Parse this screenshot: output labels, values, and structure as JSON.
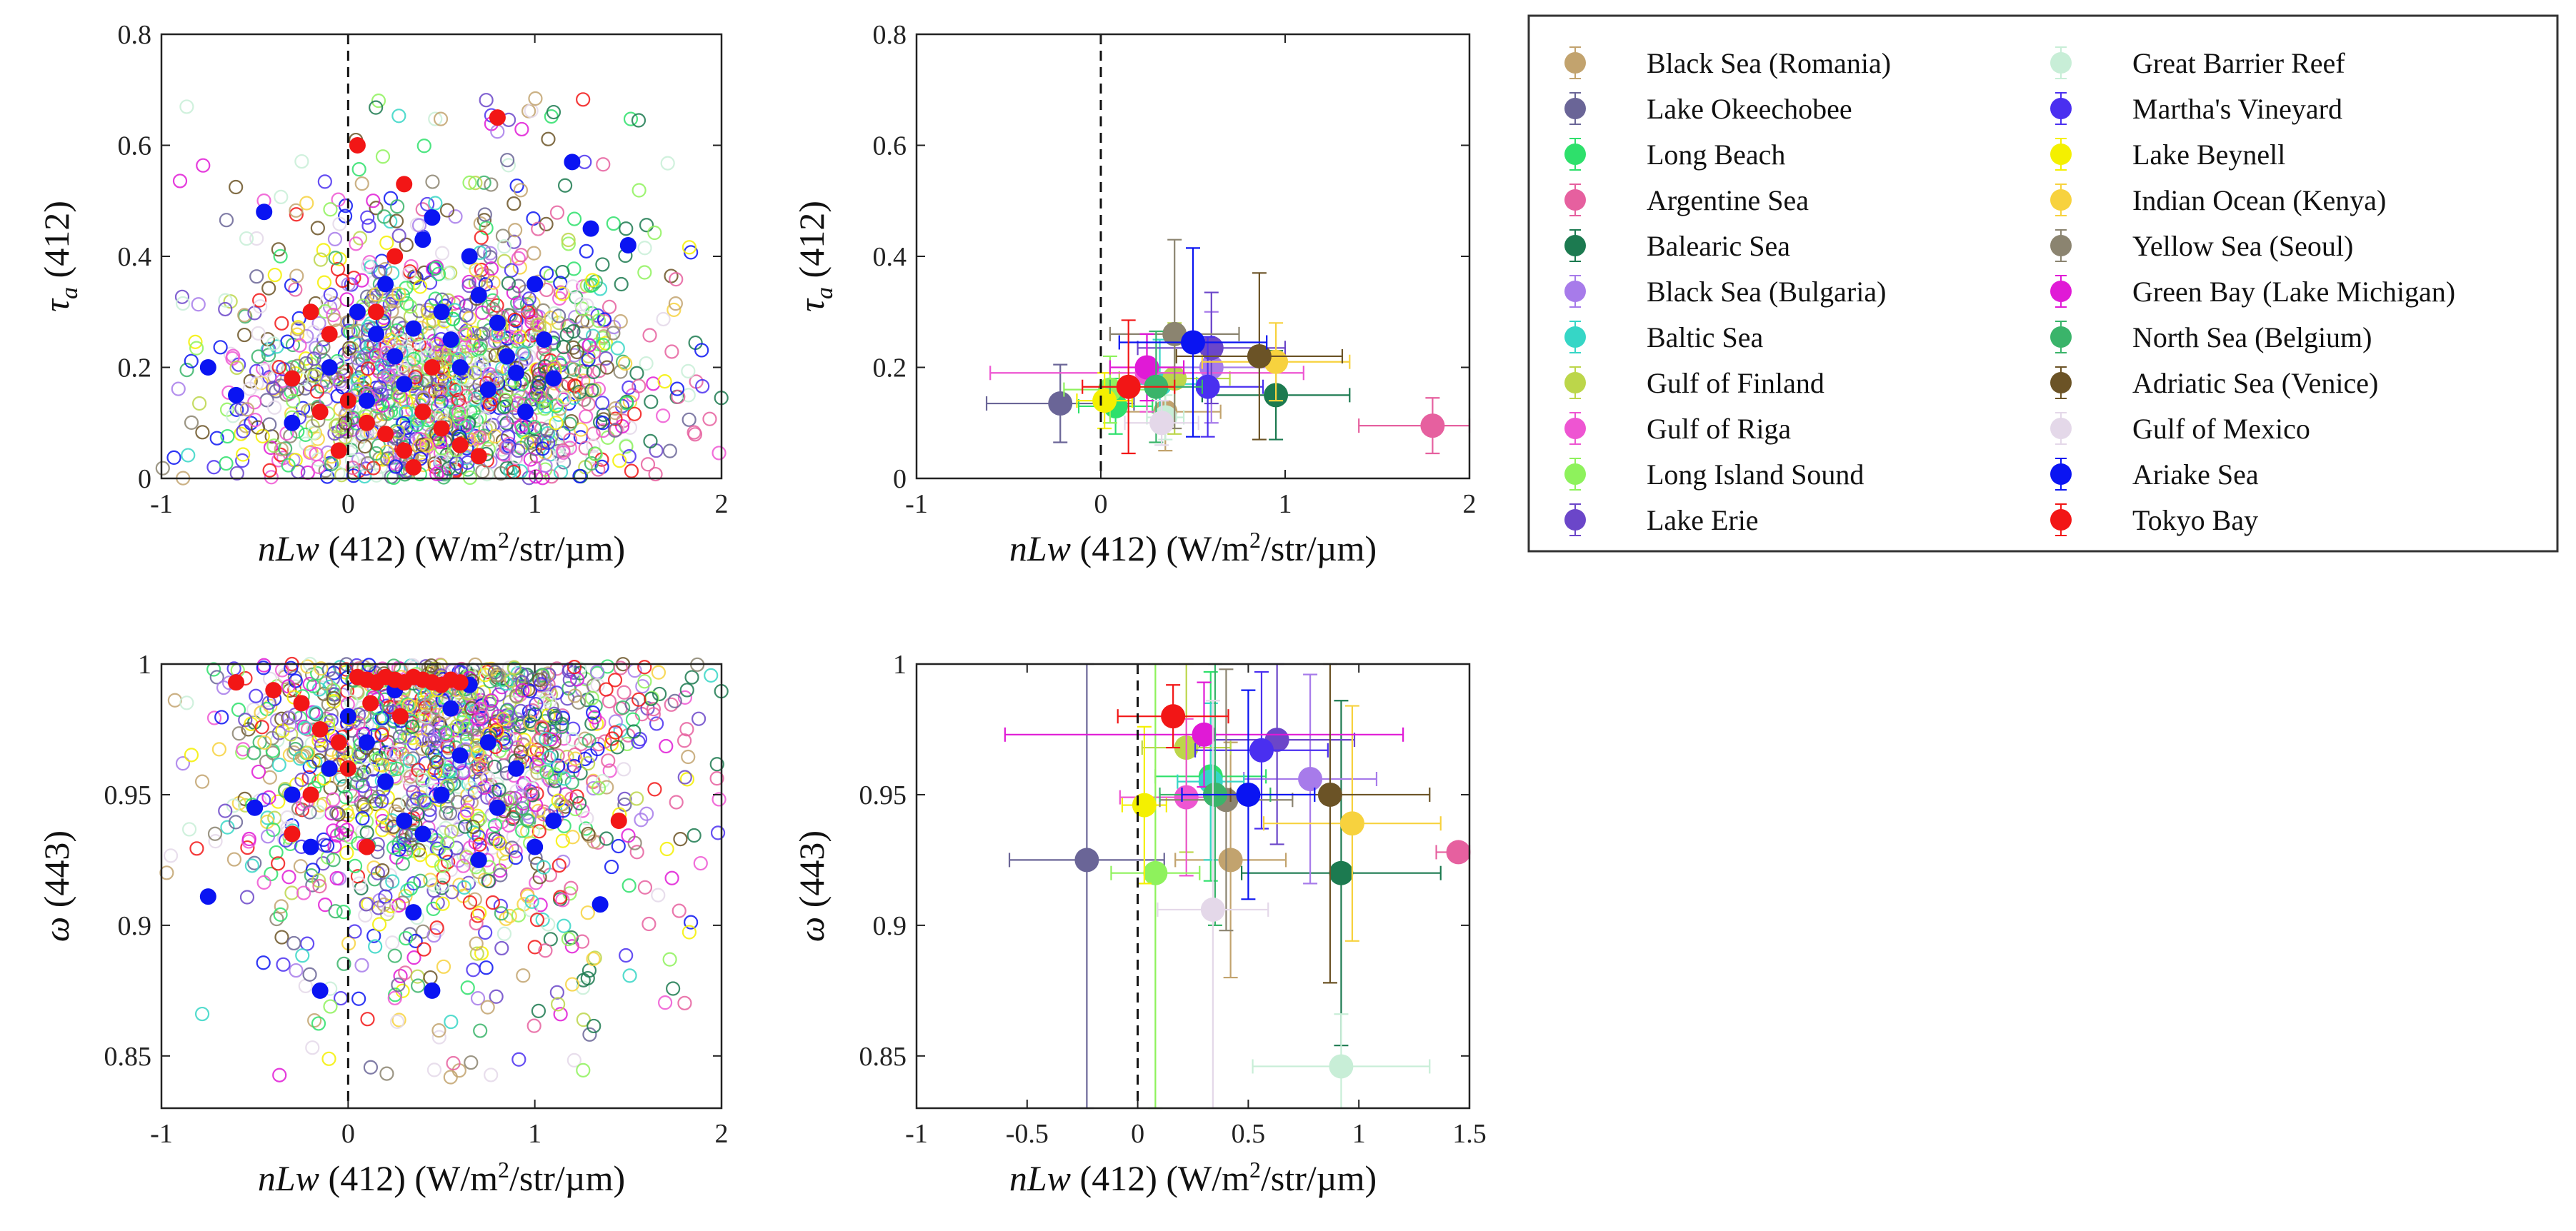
{
  "sites": [
    {
      "name": "Black Sea (Romania)",
      "color": "#c2a36e"
    },
    {
      "name": "Lake Okeechobee",
      "color": "#6a6597"
    },
    {
      "name": "Long Beach",
      "color": "#2ee06b"
    },
    {
      "name": "Argentine Sea",
      "color": "#e6609f"
    },
    {
      "name": "Balearic Sea",
      "color": "#1c7a50"
    },
    {
      "name": "Black Sea (Bulgaria)",
      "color": "#a77bea"
    },
    {
      "name": "Baltic Sea",
      "color": "#36d6c6"
    },
    {
      "name": "Gulf of Finland",
      "color": "#bcd64a"
    },
    {
      "name": "Gulf of Riga",
      "color": "#ee55d2"
    },
    {
      "name": "Long Island Sound",
      "color": "#8ef25c"
    },
    {
      "name": "Lake Erie",
      "color": "#6b46c9"
    },
    {
      "name": "Great Barrier Reef",
      "color": "#c8eed7"
    },
    {
      "name": "Martha's Vineyard",
      "color": "#4a2ff0"
    },
    {
      "name": "Lake Beynell",
      "color": "#f4f000"
    },
    {
      "name": "Indian Ocean (Kenya)",
      "color": "#f7d23e"
    },
    {
      "name": "Yellow Sea (Seoul)",
      "color": "#8b8470"
    },
    {
      "name": "Green Bay (Lake Michigan)",
      "color": "#e01ad6"
    },
    {
      "name": "North Sea (Belgium)",
      "color": "#3ab46a"
    },
    {
      "name": "Adriatic Sea (Venice)",
      "color": "#6b5326"
    },
    {
      "name": "Gulf of Mexico",
      "color": "#e4d8e9"
    },
    {
      "name": "Ariake Sea",
      "color": "#0a14f2"
    },
    {
      "name": "Tokyo Bay",
      "color": "#f21616"
    }
  ],
  "chart_data": [
    {
      "id": "p1",
      "type": "scatter",
      "title": "",
      "xlabel_italic": "nLw",
      "xlabel_rest": " (412) (W/m",
      "xlabel_sup": "2",
      "xlabel_tail": "/str/µm)",
      "ylabel_main": "τ",
      "ylabel_sub": "a",
      "ylabel_rest": " (412)",
      "xlim": [
        -1,
        2
      ],
      "ylim": [
        0,
        0.8
      ],
      "xticks": [
        -1,
        0,
        1,
        2
      ],
      "yticks": [
        0,
        0.2,
        0.4,
        0.6,
        0.8
      ],
      "xtick_labels": [
        "-1",
        "0",
        "1",
        "2"
      ],
      "ytick_labels": [
        "0",
        "0.2",
        "0.4",
        "0.6",
        "0.8"
      ],
      "vline": 0,
      "background_points": "dense open circles from all sites",
      "highlighted_series": [
        {
          "name": "Ariake Sea",
          "points": [
            [
              -0.45,
              0.48
            ],
            [
              -0.75,
              0.2
            ],
            [
              -0.6,
              0.15
            ],
            [
              -0.3,
              0.1
            ],
            [
              -0.1,
              0.2
            ],
            [
              0.1,
              0.14
            ],
            [
              0.2,
              0.35
            ],
            [
              0.3,
              0.17
            ],
            [
              0.35,
              0.27
            ],
            [
              0.4,
              0.43
            ],
            [
              0.45,
              0.47
            ],
            [
              0.5,
              0.3
            ],
            [
              0.55,
              0.25
            ],
            [
              0.6,
              0.2
            ],
            [
              0.65,
              0.4
            ],
            [
              0.7,
              0.33
            ],
            [
              0.75,
              0.16
            ],
            [
              0.8,
              0.28
            ],
            [
              0.85,
              0.22
            ],
            [
              0.9,
              0.19
            ],
            [
              0.95,
              0.12
            ],
            [
              1.0,
              0.35
            ],
            [
              1.05,
              0.25
            ],
            [
              1.1,
              0.18
            ],
            [
              1.2,
              0.57
            ],
            [
              1.3,
              0.45
            ],
            [
              1.5,
              0.42
            ],
            [
              0.15,
              0.26
            ],
            [
              0.25,
              0.22
            ],
            [
              0.05,
              0.3
            ]
          ]
        },
        {
          "name": "Tokyo Bay",
          "points": [
            [
              -0.2,
              0.3
            ],
            [
              -0.1,
              0.26
            ],
            [
              0.0,
              0.14
            ],
            [
              0.1,
              0.1
            ],
            [
              0.2,
              0.08
            ],
            [
              0.3,
              0.05
            ],
            [
              0.4,
              0.12
            ],
            [
              0.5,
              0.09
            ],
            [
              0.6,
              0.06
            ],
            [
              0.7,
              0.04
            ],
            [
              0.15,
              0.3
            ],
            [
              0.25,
              0.4
            ],
            [
              -0.05,
              0.05
            ],
            [
              0.8,
              0.65
            ],
            [
              0.05,
              0.6
            ],
            [
              0.3,
              0.53
            ],
            [
              0.45,
              0.2
            ],
            [
              -0.3,
              0.18
            ],
            [
              -0.15,
              0.12
            ],
            [
              0.35,
              0.02
            ]
          ]
        }
      ]
    },
    {
      "id": "p2",
      "type": "scatter",
      "title": "",
      "xlabel_italic": "nLw",
      "xlabel_rest": " (412) (W/m",
      "xlabel_sup": "2",
      "xlabel_tail": "/str/µm)",
      "ylabel_main": "τ",
      "ylabel_sub": "a",
      "ylabel_rest": " (412)",
      "xlim": [
        -1,
        2
      ],
      "ylim": [
        0,
        0.8
      ],
      "xticks": [
        -1,
        0,
        1,
        2
      ],
      "yticks": [
        0,
        0.2,
        0.4,
        0.6,
        0.8
      ],
      "xtick_labels": [
        "-1",
        "0",
        "1",
        "2"
      ],
      "ytick_labels": [
        "0",
        "0.2",
        "0.4",
        "0.6",
        "0.8"
      ],
      "vline": 0,
      "means": [
        {
          "site": "Black Sea (Romania)",
          "x": 0.35,
          "y": 0.12,
          "xerr": 0.3,
          "yerr": 0.07
        },
        {
          "site": "Lake Okeechobee",
          "x": -0.22,
          "y": 0.135,
          "xerr": 0.4,
          "yerr": 0.07
        },
        {
          "site": "Long Beach",
          "x": 0.08,
          "y": 0.13,
          "xerr": 0.2,
          "yerr": 0.05
        },
        {
          "site": "Argentine Sea",
          "x": 1.8,
          "y": 0.095,
          "xerr": 0.4,
          "yerr": 0.05
        },
        {
          "site": "Balearic Sea",
          "x": 0.95,
          "y": 0.15,
          "xerr": 0.4,
          "yerr": 0.08
        },
        {
          "site": "Black Sea (Bulgaria)",
          "x": 0.6,
          "y": 0.2,
          "xerr": 0.35,
          "yerr": 0.1
        },
        {
          "site": "Baltic Sea",
          "x": 0.32,
          "y": 0.17,
          "xerr": 0.2,
          "yerr": 0.08
        },
        {
          "site": "Gulf of Finland",
          "x": 0.4,
          "y": 0.18,
          "xerr": 0.3,
          "yerr": 0.1
        },
        {
          "site": "Gulf of Riga",
          "x": 0.25,
          "y": 0.19,
          "xerr": 0.85,
          "yerr": 0.07
        },
        {
          "site": "Long Island Sound",
          "x": 0.05,
          "y": 0.16,
          "xerr": 0.25,
          "yerr": 0.06
        },
        {
          "site": "Lake Erie",
          "x": 0.6,
          "y": 0.235,
          "xerr": 0.4,
          "yerr": 0.1
        },
        {
          "site": "Great Barrier Reef",
          "x": 0.35,
          "y": 0.11,
          "xerr": 0.1,
          "yerr": 0.04
        },
        {
          "site": "Martha's Vineyard",
          "x": 0.58,
          "y": 0.165,
          "xerr": 0.3,
          "yerr": 0.09
        },
        {
          "site": "Lake Beynell",
          "x": 0.02,
          "y": 0.14,
          "xerr": 0.15,
          "yerr": 0.05
        },
        {
          "site": "Indian Ocean (Kenya)",
          "x": 0.95,
          "y": 0.21,
          "xerr": 0.4,
          "yerr": 0.07
        },
        {
          "site": "Yellow Sea (Seoul)",
          "x": 0.4,
          "y": 0.26,
          "xerr": 0.35,
          "yerr": 0.17
        },
        {
          "site": "Green Bay (Lake Michigan)",
          "x": 0.25,
          "y": 0.2,
          "xerr": 0.2,
          "yerr": 0.06
        },
        {
          "site": "North Sea (Belgium)",
          "x": 0.3,
          "y": 0.165,
          "xerr": 0.25,
          "yerr": 0.1
        },
        {
          "site": "Adriatic Sea (Venice)",
          "x": 0.86,
          "y": 0.22,
          "xerr": 0.45,
          "yerr": 0.15
        },
        {
          "site": "Gulf of Mexico",
          "x": 0.33,
          "y": 0.1,
          "xerr": 0.2,
          "yerr": 0.04
        },
        {
          "site": "Ariake Sea",
          "x": 0.5,
          "y": 0.245,
          "xerr": 0.4,
          "yerr": 0.17
        },
        {
          "site": "Tokyo Bay",
          "x": 0.15,
          "y": 0.165,
          "xerr": 0.25,
          "yerr": 0.12
        }
      ]
    },
    {
      "id": "p3",
      "type": "scatter",
      "title": "",
      "xlabel_italic": "nLw",
      "xlabel_rest": " (412) (W/m",
      "xlabel_sup": "2",
      "xlabel_tail": "/str/µm)",
      "ylabel_main": "ω",
      "ylabel_sub": "",
      "ylabel_rest": " (443)",
      "xlim": [
        -1,
        2
      ],
      "ylim": [
        0.83,
        1.0
      ],
      "xticks": [
        -1,
        0,
        1,
        2
      ],
      "yticks": [
        0.85,
        0.9,
        0.95,
        1.0
      ],
      "xtick_labels": [
        "-1",
        "0",
        "1",
        "2"
      ],
      "ytick_labels": [
        "0.85",
        "0.9",
        "0.95",
        "1"
      ],
      "vline": 0,
      "background_points": "dense open circles from all sites",
      "highlighted_series": [
        {
          "name": "Ariake Sea",
          "points": [
            [
              -0.75,
              0.911
            ],
            [
              -0.5,
              0.945
            ],
            [
              -0.3,
              0.95
            ],
            [
              -0.2,
              0.93
            ],
            [
              -0.1,
              0.96
            ],
            [
              0.0,
              0.98
            ],
            [
              0.1,
              0.97
            ],
            [
              0.2,
              0.955
            ],
            [
              0.3,
              0.94
            ],
            [
              0.4,
              0.935
            ],
            [
              0.5,
              0.95
            ],
            [
              0.6,
              0.965
            ],
            [
              0.7,
              0.925
            ],
            [
              0.8,
              0.945
            ],
            [
              0.9,
              0.96
            ],
            [
              1.0,
              0.93
            ],
            [
              1.1,
              0.94
            ],
            [
              1.35,
              0.908
            ],
            [
              0.55,
              0.983
            ],
            [
              0.25,
              0.99
            ],
            [
              0.65,
              0.992
            ],
            [
              0.45,
              0.875
            ],
            [
              -0.15,
              0.875
            ],
            [
              0.35,
              0.905
            ],
            [
              0.75,
              0.97
            ]
          ]
        },
        {
          "name": "Tokyo Bay",
          "points": [
            [
              -0.6,
              0.993
            ],
            [
              -0.4,
              0.99
            ],
            [
              -0.25,
              0.985
            ],
            [
              -0.15,
              0.975
            ],
            [
              -0.05,
              0.97
            ],
            [
              0.05,
              0.995
            ],
            [
              0.1,
              0.994
            ],
            [
              0.15,
              0.993
            ],
            [
              0.2,
              0.995
            ],
            [
              0.25,
              0.994
            ],
            [
              0.3,
              0.993
            ],
            [
              0.35,
              0.995
            ],
            [
              0.4,
              0.994
            ],
            [
              0.45,
              0.993
            ],
            [
              0.5,
              0.992
            ],
            [
              0.55,
              0.994
            ],
            [
              0.6,
              0.993
            ],
            [
              -0.3,
              0.935
            ],
            [
              -0.2,
              0.95
            ],
            [
              0.1,
              0.93
            ],
            [
              1.45,
              0.94
            ],
            [
              0.0,
              0.96
            ],
            [
              0.12,
              0.985
            ],
            [
              0.28,
              0.98
            ]
          ]
        }
      ]
    },
    {
      "id": "p4",
      "type": "scatter",
      "title": "",
      "xlabel_italic": "nLw",
      "xlabel_rest": " (412) (W/m",
      "xlabel_sup": "2",
      "xlabel_tail": "/str/µm)",
      "ylabel_main": "ω",
      "ylabel_sub": "",
      "ylabel_rest": " (443)",
      "xlim": [
        -1,
        1.5
      ],
      "ylim": [
        0.83,
        1.0
      ],
      "xticks": [
        -1,
        -0.5,
        0,
        0.5,
        1,
        1.5
      ],
      "yticks": [
        0.85,
        0.9,
        0.95,
        1.0
      ],
      "xtick_labels": [
        "-1",
        "-0.5",
        "0",
        "0.5",
        "1",
        "1.5"
      ],
      "ytick_labels": [
        "0.85",
        "0.9",
        "0.95",
        "1"
      ],
      "vline": 0,
      "means": [
        {
          "site": "Black Sea (Romania)",
          "x": 0.42,
          "y": 0.925,
          "xerr": 0.25,
          "yerr": 0.045
        },
        {
          "site": "Lake Okeechobee",
          "x": -0.23,
          "y": 0.925,
          "xerr": 0.35,
          "yerr": 0.1
        },
        {
          "site": "Long Beach",
          "x": 0.33,
          "y": 0.957,
          "xerr": 0.25,
          "yerr": 0.04
        },
        {
          "site": "Argentine Sea",
          "x": 1.45,
          "y": 0.928,
          "xerr": 0.1,
          "yerr": 0.0
        },
        {
          "site": "Balearic Sea",
          "x": 0.92,
          "y": 0.92,
          "xerr": 0.45,
          "yerr": 0.066
        },
        {
          "site": "Black Sea (Bulgaria)",
          "x": 0.78,
          "y": 0.956,
          "xerr": 0.3,
          "yerr": 0.04
        },
        {
          "site": "Baltic Sea",
          "x": 0.33,
          "y": 0.955,
          "xerr": 0.15,
          "yerr": 0.03
        },
        {
          "site": "Gulf of Finland",
          "x": 0.22,
          "y": 0.968,
          "xerr": 0.2,
          "yerr": 0.04
        },
        {
          "site": "Gulf of Riga",
          "x": 0.22,
          "y": 0.949,
          "xerr": 0.3,
          "yerr": 0.03
        },
        {
          "site": "Long Island Sound",
          "x": 0.08,
          "y": 0.92,
          "xerr": 0.2,
          "yerr": 0.1
        },
        {
          "site": "Lake Erie",
          "x": 0.63,
          "y": 0.971,
          "xerr": 0.35,
          "yerr": 0.04
        },
        {
          "site": "Great Barrier Reef",
          "x": 0.92,
          "y": 0.846,
          "xerr": 0.4,
          "yerr": 0.02
        },
        {
          "site": "Martha's Vineyard",
          "x": 0.56,
          "y": 0.967,
          "xerr": 0.3,
          "yerr": 0.03
        },
        {
          "site": "Lake Beynell",
          "x": 0.03,
          "y": 0.946,
          "xerr": 0.1,
          "yerr": 0.03
        },
        {
          "site": "Indian Ocean (Kenya)",
          "x": 0.97,
          "y": 0.939,
          "xerr": 0.4,
          "yerr": 0.045
        },
        {
          "site": "Yellow Sea (Seoul)",
          "x": 0.4,
          "y": 0.948,
          "xerr": 0.3,
          "yerr": 0.05
        },
        {
          "site": "Green Bay (Lake Michigan)",
          "x": 0.3,
          "y": 0.973,
          "xerr": 0.9,
          "yerr": 0.02
        },
        {
          "site": "North Sea (Belgium)",
          "x": 0.35,
          "y": 0.95,
          "xerr": 0.25,
          "yerr": 0.05
        },
        {
          "site": "Adriatic Sea (Venice)",
          "x": 0.87,
          "y": 0.95,
          "xerr": 0.45,
          "yerr": 0.072
        },
        {
          "site": "Gulf of Mexico",
          "x": 0.34,
          "y": 0.906,
          "xerr": 0.25,
          "yerr": 0.08
        },
        {
          "site": "Ariake Sea",
          "x": 0.5,
          "y": 0.95,
          "xerr": 0.3,
          "yerr": 0.04
        },
        {
          "site": "Tokyo Bay",
          "x": 0.16,
          "y": 0.98,
          "xerr": 0.25,
          "yerr": 0.012
        }
      ]
    }
  ]
}
